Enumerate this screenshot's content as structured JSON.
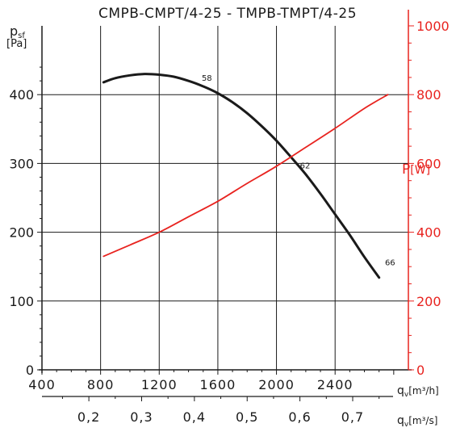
{
  "chart_data": {
    "type": "line",
    "title": "CMPB-CMPT/4-25 - TMPB-TMPT/4-25",
    "y_left": {
      "label_main": "p",
      "label_sub": "sf",
      "unit": "[Pa]",
      "lim": [
        0,
        500
      ],
      "ticks": [
        0,
        100,
        200,
        300,
        400
      ]
    },
    "y_right": {
      "label_main": "P",
      "unit": "[W]",
      "lim": [
        0,
        1000
      ],
      "ticks": [
        0,
        200,
        400,
        600,
        800,
        1000
      ],
      "color": "#e8231f"
    },
    "x_flow_m3h": {
      "label_main": "q",
      "label_sub": "v",
      "unit": "[m³/h]",
      "lim": [
        400,
        2900
      ],
      "ticks": [
        400,
        800,
        1200,
        1600,
        2000,
        2400
      ]
    },
    "x_flow_m3s": {
      "label_main": "q",
      "label_sub": "v",
      "unit": "[m³/s]",
      "ticks": [
        0.2,
        0.3,
        0.4,
        0.5,
        0.6,
        0.7
      ],
      "tick_labels": [
        "0,2",
        "0,3",
        "0,4",
        "0,5",
        "0,6",
        "0,7"
      ]
    },
    "grid": true,
    "series": [
      {
        "axis": "left",
        "color": "#1a1a1a",
        "x": [
          820,
          900,
          1000,
          1100,
          1200,
          1300,
          1400,
          1500,
          1600,
          1700,
          1800,
          1900,
          2000,
          2100,
          2200,
          2300,
          2400,
          2500,
          2600,
          2700,
          2800
        ],
        "y": [
          418,
          424,
          428,
          430,
          429,
          426,
          420,
          412,
          402,
          389,
          373,
          354,
          333,
          309,
          284,
          256,
          226,
          196,
          164,
          134,
          134
        ]
      },
      {
        "axis": "right",
        "color": "#e8231f",
        "x": [
          820,
          1000,
          1200,
          1400,
          1600,
          1800,
          2000,
          2200,
          2400,
          2600,
          2760
        ],
        "y": [
          330,
          363,
          400,
          445,
          490,
          542,
          592,
          647,
          702,
          760,
          800
        ]
      }
    ],
    "annotations": [
      {
        "text": "58",
        "x": 1490,
        "y": 420
      },
      {
        "text": "62",
        "x": 2160,
        "y": 293
      },
      {
        "text": "66",
        "x": 2740,
        "y": 152
      }
    ]
  }
}
